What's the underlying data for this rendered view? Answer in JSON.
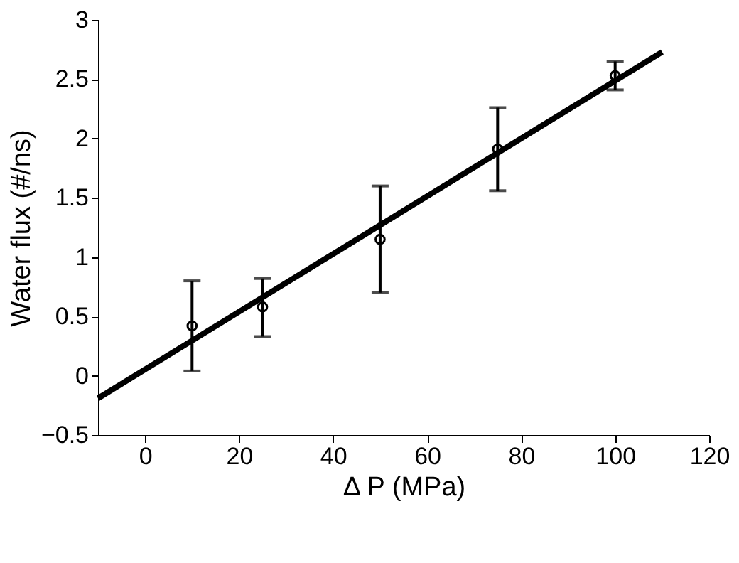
{
  "chart_data": {
    "type": "scatter",
    "xlabel": "Δ P (MPa)",
    "ylabel": "Water flux (#/ns)",
    "xlim": [
      -10,
      120
    ],
    "xticks": [
      0,
      20,
      40,
      60,
      80,
      100,
      120
    ],
    "ylim": [
      -0.5,
      3
    ],
    "yticks": [
      -0.5,
      0,
      0.5,
      1,
      1.5,
      2,
      2.5,
      3
    ],
    "grid": false,
    "legend": false,
    "marker": "circle",
    "series": [
      {
        "color": "#000000",
        "x": [
          10,
          25,
          50,
          75,
          100
        ],
        "values": [
          0.42,
          0.58,
          1.15,
          1.91,
          2.53
        ],
        "errors": [
          [
            0.04,
            0.8
          ],
          [
            0.33,
            0.82
          ],
          [
            0.7,
            1.6
          ],
          [
            1.56,
            2.26
          ],
          [
            2.41,
            2.65
          ]
        ]
      },
      {
        "type": "line",
        "color": "#000000",
        "marker": "none",
        "line_style": "solid",
        "x": [
          -10,
          110
        ],
        "values": [
          -0.19,
          2.73
        ]
      }
    ]
  }
}
